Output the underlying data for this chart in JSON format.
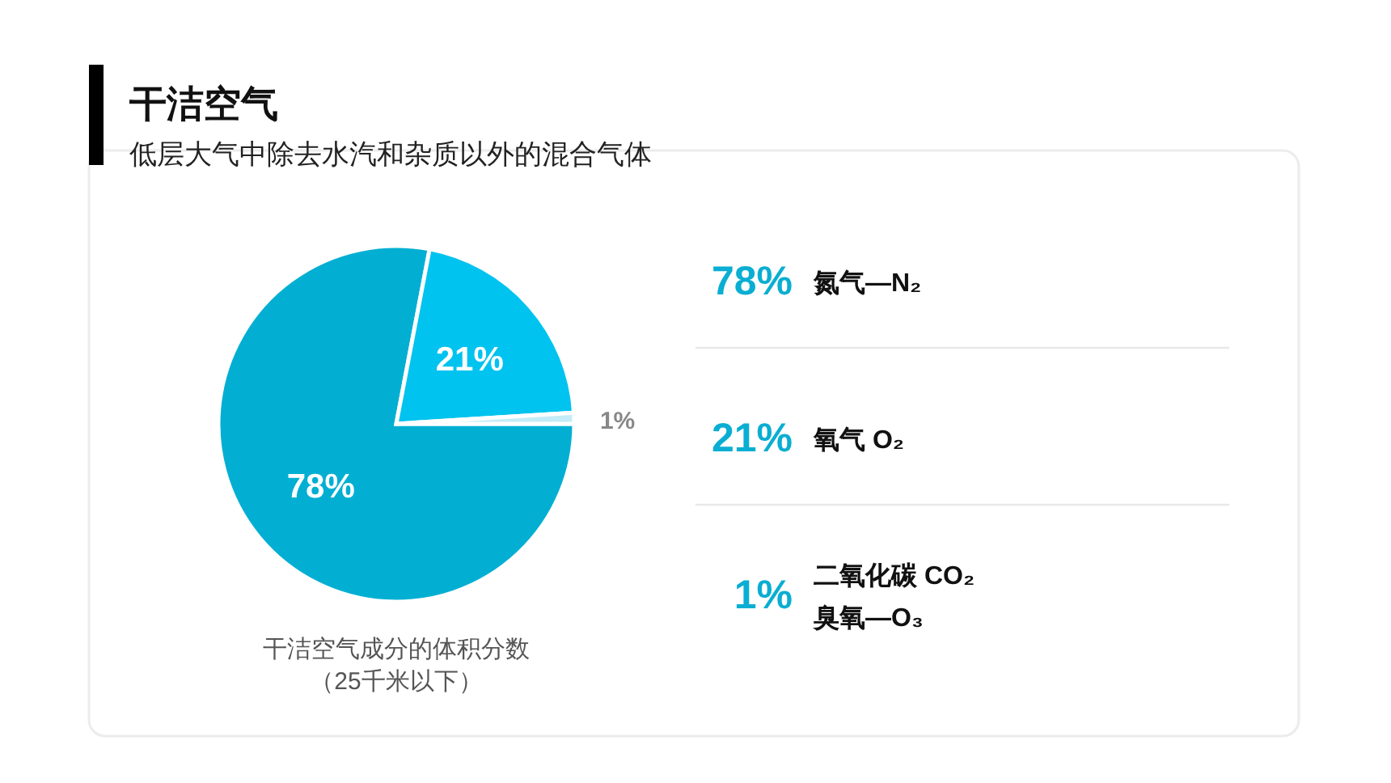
{
  "chart_data": [
    {
      "type": "pie",
      "title": "干洁空气",
      "subtitle": "低层大气中除去水汽和杂质以外的混合气体",
      "categories": [
        null,
        null,
        null
      ],
      "values": [
        78,
        21,
        1
      ],
      "colors": [
        "#02afd3",
        "#00c3ef",
        "#c4ecf8"
      ],
      "value_labels": [
        "78%",
        "21%",
        "1%"
      ],
      "annotations": [
        "干洁空气成分的体积分数",
        "（25千米以下）"
      ]
    },
    {
      "type": "other",
      "annotations": [
        "78%",
        "氮气—N₂",
        "21%",
        "氧气  O₂",
        "1%",
        "二氧化碳  CO₂\n臭氧—O₃"
      ]
    }
  ]
}
